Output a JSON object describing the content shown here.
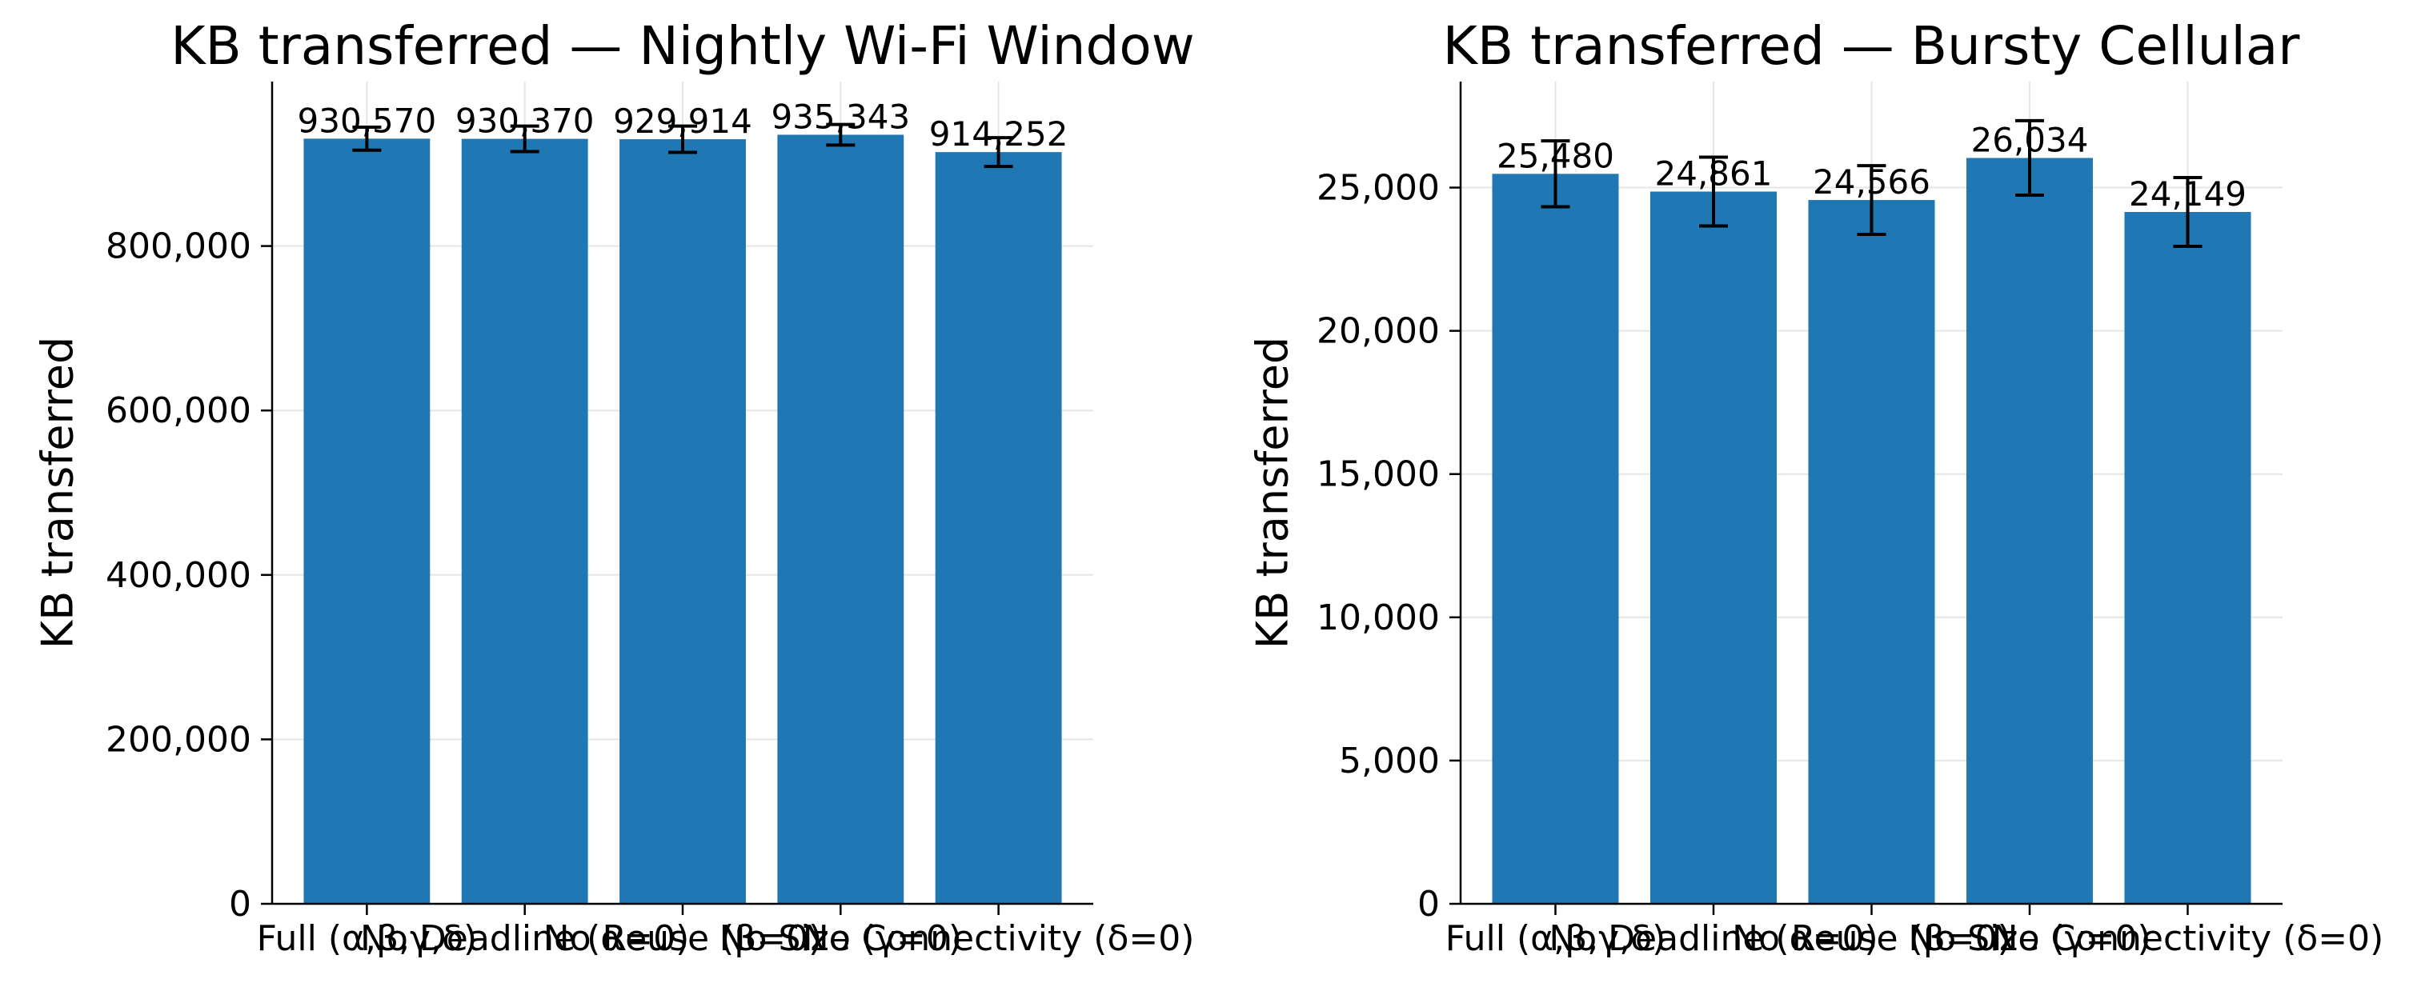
{
  "chart_data": [
    {
      "type": "bar",
      "title": "KB transferred — Nightly Wi-Fi Window",
      "xlabel": "",
      "ylabel": "KB transferred",
      "categories": [
        "Full (α,β,γ,δ)",
        "No Deadline (α=0)",
        "No Reuse (β=0)",
        "No Size (γ=0)",
        "No Connectivity (δ=0)"
      ],
      "values": [
        930570,
        930370,
        929914,
        935343,
        914252
      ],
      "error": [
        14000,
        15500,
        16000,
        12500,
        17500
      ],
      "value_labels": [
        "930,570",
        "930,370",
        "929,914",
        "935,343",
        "914,252"
      ],
      "ylim": [
        0,
        1000000
      ],
      "yticks": [
        0,
        200000,
        400000,
        600000,
        800000
      ],
      "ytick_labels": [
        "0",
        "200,000",
        "400,000",
        "600,000",
        "800,000"
      ],
      "grid": true,
      "bar_color": "#1f77b4"
    },
    {
      "type": "bar",
      "title": "KB transferred — Bursty Cellular",
      "xlabel": "",
      "ylabel": "KB transferred",
      "categories": [
        "Full (α,β,γ,δ)",
        "No Deadline (α=0)",
        "No Reuse (β=0)",
        "No Size (γ=0)",
        "No Connectivity (δ=0)"
      ],
      "values": [
        25480,
        24861,
        24566,
        26034,
        24149
      ],
      "error": [
        1150,
        1200,
        1200,
        1300,
        1200
      ],
      "value_labels": [
        "25,480",
        "24,861",
        "24,566",
        "26,034",
        "24,149"
      ],
      "ylim": [
        0,
        28700
      ],
      "yticks": [
        0,
        5000,
        10000,
        15000,
        20000,
        25000
      ],
      "ytick_labels": [
        "0",
        "5,000",
        "10,000",
        "15,000",
        "20,000",
        "25,000"
      ],
      "grid": true,
      "bar_color": "#1f77b4"
    }
  ]
}
